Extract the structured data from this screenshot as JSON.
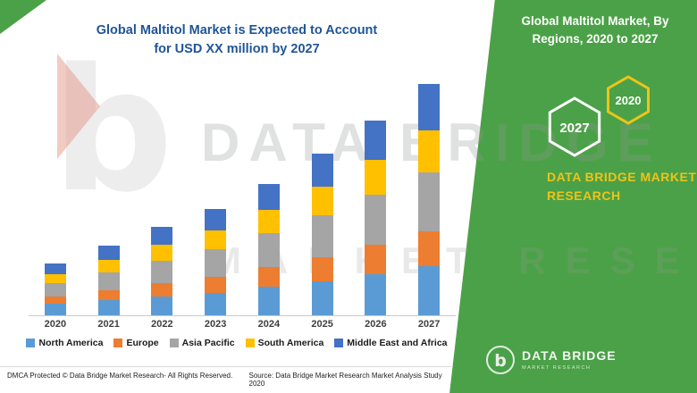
{
  "chart": {
    "title_line1": "Global Maltitol Market is Expected to Account",
    "title_line2": "for USD XX million by 2027"
  },
  "chart_data": {
    "type": "bar",
    "stacked": true,
    "title": "Global Maltitol Market is Expected to Account for USD XX million by 2027",
    "xlabel": "",
    "ylabel": "",
    "ylim": [
      0,
      260
    ],
    "grid": false,
    "legend_position": "bottom",
    "categories": [
      "2020",
      "2021",
      "2022",
      "2023",
      "2024",
      "2025",
      "2026",
      "2027"
    ],
    "series": [
      {
        "name": "North America",
        "color": "#5B9BD5",
        "values": [
          12,
          16,
          20,
          24,
          30,
          36,
          44,
          52
        ]
      },
      {
        "name": "Europe",
        "color": "#ED7D31",
        "values": [
          8,
          11,
          14,
          17,
          21,
          26,
          31,
          37
        ]
      },
      {
        "name": "Asia Pacific",
        "color": "#A5A5A5",
        "values": [
          14,
          19,
          24,
          29,
          36,
          44,
          53,
          63
        ]
      },
      {
        "name": "South America",
        "color": "#FFC000",
        "values": [
          10,
          13,
          17,
          20,
          25,
          31,
          37,
          44
        ]
      },
      {
        "name": "Middle East and Africa",
        "color": "#4472C4",
        "values": [
          11,
          15,
          19,
          23,
          28,
          35,
          42,
          50
        ]
      }
    ]
  },
  "side_panel": {
    "title": "Global Maltitol Market, By Regions, 2020 to 2027",
    "hexagon_back": "2020",
    "hexagon_front": "2027",
    "brand": "DATA BRIDGE MARKET RESEARCH"
  },
  "logo": {
    "name": "DATA BRIDGE",
    "tagline": "MARKET RESEARCH"
  },
  "watermark": {
    "line1": "DATA BRIDGE",
    "line2": "MARKET RESEARCH",
    "letter_b": "b"
  },
  "footer": {
    "dmca": "DMCA Protected © Data Bridge Market Research- All Rights Reserved.",
    "source": "Source: Data Bridge Market Research Market Analysis Study 2020"
  },
  "colors": {
    "panel_green": "#4BA147",
    "title_blue": "#1F5597",
    "brand_yellow": "#EFC319"
  }
}
